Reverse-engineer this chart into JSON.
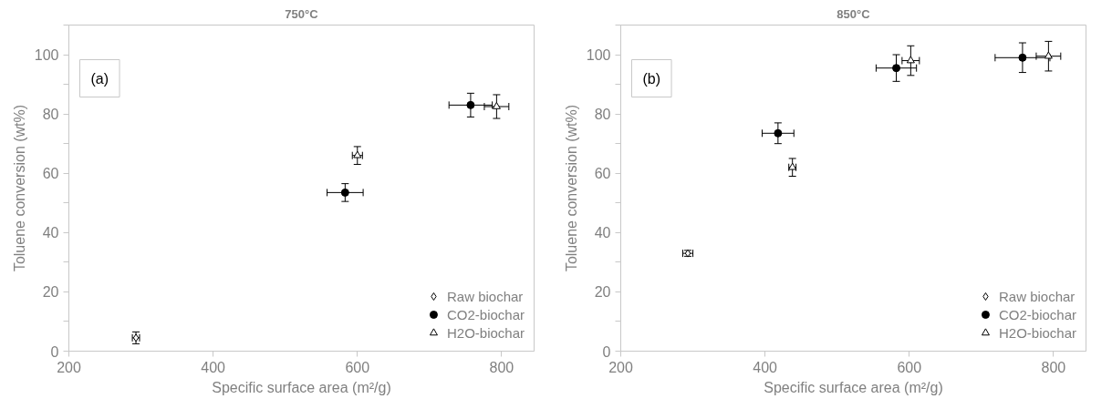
{
  "chart_data": [
    {
      "type": "scatter",
      "title": "750°C",
      "xlabel": "Specific surface area (m²/g)",
      "ylabel": "Toluene conversion (wt%)",
      "annotations": [
        "(a)"
      ],
      "xlim": [
        200,
        845
      ],
      "ylim": [
        0,
        110
      ],
      "xticks": [
        200,
        400,
        600,
        800
      ],
      "yticks": [
        0,
        {
          "value": 10,
          "label": null
        },
        20,
        {
          "value": 30,
          "label": null
        },
        40,
        {
          "value": 50,
          "label": null
        },
        60,
        {
          "value": 70,
          "label": null
        },
        80,
        {
          "value": 90,
          "label": null
        },
        100,
        {
          "value": 110,
          "label": null
        }
      ],
      "legend": "bottom right",
      "grid": false,
      "series": [
        {
          "name": "Raw biochar",
          "color": "#000000",
          "marker": "diamond",
          "x": [
            293
          ],
          "values": [
            4.5
          ],
          "errors": [
            2
          ],
          "xerrors": [
            5
          ]
        },
        {
          "name": "CO2-biochar",
          "color": "#000000",
          "marker": "circle",
          "x": [
            583,
            757
          ],
          "values": [
            53.5,
            83
          ],
          "errors": [
            3,
            4
          ],
          "xerrors": [
            25,
            30
          ]
        },
        {
          "name": "H2O-biochar",
          "color": "#000000",
          "marker": "triangle",
          "x": [
            600,
            793
          ],
          "values": [
            66,
            82.5
          ],
          "errors": [
            3,
            4
          ],
          "xerrors": [
            7,
            17
          ]
        }
      ]
    },
    {
      "type": "scatter",
      "title": "850°C",
      "xlabel": "Specific surface area (m²/g)",
      "ylabel": "Toluene conversion (wt%)",
      "annotations": [
        "(b)"
      ],
      "xlim": [
        200,
        845
      ],
      "ylim": [
        0,
        110
      ],
      "xticks": [
        200,
        400,
        600,
        800
      ],
      "yticks": [
        0,
        {
          "value": 10,
          "label": null
        },
        20,
        {
          "value": 30,
          "label": null
        },
        40,
        {
          "value": 50,
          "label": null
        },
        60,
        {
          "value": 70,
          "label": null
        },
        80,
        {
          "value": 90,
          "label": null
        },
        100,
        {
          "value": 110,
          "label": null
        }
      ],
      "legend": "bottom right",
      "grid": false,
      "series": [
        {
          "name": "Raw biochar",
          "color": "#000000",
          "marker": "diamond",
          "x": [
            293
          ],
          "values": [
            33
          ],
          "errors": [
            1
          ],
          "xerrors": [
            7
          ]
        },
        {
          "name": "CO2-biochar",
          "color": "#000000",
          "marker": "circle",
          "x": [
            418,
            582,
            757
          ],
          "values": [
            73.5,
            95.5,
            99
          ],
          "errors": [
            3.5,
            4.5,
            5
          ],
          "xerrors": [
            22,
            28,
            38
          ]
        },
        {
          "name": "H2O-biochar",
          "color": "#000000",
          "marker": "triangle",
          "x": [
            438,
            602,
            793
          ],
          "values": [
            62,
            98,
            99.5
          ],
          "errors": [
            3,
            5,
            5
          ],
          "xerrors": [
            5,
            12,
            17
          ]
        }
      ]
    }
  ]
}
